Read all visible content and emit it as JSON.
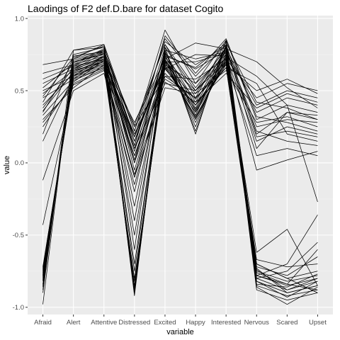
{
  "chart_data": {
    "type": "line",
    "title": "Laodings of F2 def.D.bare for dataset Cogito",
    "xlabel": "variable",
    "ylabel": "value",
    "categories": [
      "Afraid",
      "Alert",
      "Attentive",
      "Distressed",
      "Excited",
      "Happy",
      "Interested",
      "Nervous",
      "Scared",
      "Upset"
    ],
    "ylim": [
      -1.05,
      1.02
    ],
    "yticks": [
      -1.0,
      -0.5,
      0.0,
      0.5,
      1.0
    ],
    "ytick_labels": [
      "-1.0",
      "-0.5",
      "0.0",
      "0.5",
      "1.0"
    ],
    "grid": true,
    "legend": "none",
    "colors": {
      "panel": "#ebebeb",
      "grid_major": "#ffffff",
      "line": "#000000",
      "tick_text": "#4d4d4d"
    },
    "series": [
      {
        "values": [
          -0.78,
          0.62,
          0.7,
          -0.85,
          0.7,
          0.3,
          0.72,
          -0.8,
          -0.88,
          -0.82
        ]
      },
      {
        "values": [
          -0.8,
          0.65,
          0.72,
          -0.88,
          0.72,
          0.28,
          0.75,
          -0.82,
          -0.9,
          -0.85
        ]
      },
      {
        "values": [
          -0.75,
          0.6,
          0.68,
          -0.82,
          0.68,
          0.32,
          0.7,
          -0.78,
          -0.85,
          -0.8
        ]
      },
      {
        "values": [
          -0.85,
          0.7,
          0.75,
          -0.9,
          0.75,
          0.25,
          0.8,
          -0.85,
          -0.92,
          -0.88
        ]
      },
      {
        "values": [
          -0.72,
          0.58,
          0.66,
          -0.8,
          0.66,
          0.35,
          0.68,
          -0.75,
          -0.82,
          -0.78
        ]
      },
      {
        "values": [
          -0.9,
          0.72,
          0.78,
          -0.86,
          0.78,
          0.22,
          0.82,
          -0.88,
          -0.95,
          -0.9
        ]
      },
      {
        "values": [
          -0.98,
          0.75,
          0.8,
          -0.92,
          0.8,
          0.2,
          0.85,
          -0.86,
          -0.98,
          -0.86
        ]
      },
      {
        "values": [
          -0.82,
          0.68,
          0.74,
          -0.75,
          0.74,
          0.4,
          0.78,
          -0.7,
          -0.8,
          -0.75
        ]
      },
      {
        "values": [
          -0.76,
          0.63,
          0.71,
          -0.7,
          0.71,
          0.38,
          0.74,
          -0.72,
          -0.78,
          -0.65
        ]
      },
      {
        "values": [
          -0.88,
          0.78,
          0.82,
          -0.6,
          0.82,
          0.45,
          0.84,
          -0.76,
          -0.84,
          -0.6
        ]
      },
      {
        "values": [
          -0.79,
          0.66,
          0.73,
          -0.5,
          0.73,
          0.48,
          0.77,
          -0.8,
          -0.75,
          -0.55
        ]
      },
      {
        "values": [
          -0.84,
          0.7,
          0.76,
          -0.4,
          0.76,
          0.42,
          0.8,
          -0.78,
          -0.7,
          -0.36
        ]
      },
      {
        "values": [
          -0.77,
          0.64,
          0.7,
          -0.3,
          0.7,
          0.5,
          0.73,
          -0.74,
          -0.88,
          -0.8
        ]
      },
      {
        "values": [
          -0.73,
          0.61,
          0.69,
          -0.2,
          0.69,
          0.44,
          0.71,
          -0.73,
          -0.9,
          -0.85
        ]
      },
      {
        "values": [
          -0.81,
          0.67,
          0.72,
          -0.1,
          0.72,
          0.36,
          0.76,
          -0.82,
          -0.93,
          -0.82
        ]
      },
      {
        "values": [
          -0.86,
          0.71,
          0.77,
          0.0,
          0.77,
          0.33,
          0.81,
          -0.84,
          -0.86,
          -0.77
        ]
      },
      {
        "values": [
          -0.78,
          0.62,
          0.7,
          0.1,
          0.7,
          0.31,
          0.72,
          -0.62,
          -0.46,
          -0.85
        ]
      },
      {
        "values": [
          -0.74,
          0.59,
          0.67,
          0.18,
          0.67,
          0.37,
          0.69,
          -0.7,
          -0.8,
          -0.9
        ]
      },
      {
        "values": [
          -0.43,
          0.55,
          0.65,
          0.05,
          0.65,
          0.4,
          0.7,
          -0.67,
          -0.72,
          -0.7
        ]
      },
      {
        "values": [
          -0.12,
          0.5,
          0.62,
          -0.15,
          0.6,
          0.45,
          0.66,
          -0.78,
          -0.84,
          -0.88
        ]
      },
      {
        "values": [
          0.68,
          0.72,
          0.82,
          0.22,
          0.92,
          0.55,
          0.85,
          0.3,
          0.4,
          0.35
        ]
      },
      {
        "values": [
          0.62,
          0.68,
          0.78,
          0.18,
          0.86,
          0.6,
          0.82,
          0.2,
          0.35,
          0.3
        ]
      },
      {
        "values": [
          0.55,
          0.65,
          0.76,
          0.12,
          0.8,
          0.5,
          0.8,
          0.35,
          0.45,
          0.4
        ]
      },
      {
        "values": [
          0.5,
          0.6,
          0.74,
          0.08,
          0.75,
          0.65,
          0.78,
          0.25,
          0.3,
          0.28
        ]
      },
      {
        "values": [
          0.45,
          0.58,
          0.72,
          0.15,
          0.7,
          0.7,
          0.76,
          0.4,
          0.5,
          0.45
        ]
      },
      {
        "values": [
          0.4,
          0.62,
          0.7,
          0.2,
          0.65,
          0.75,
          0.74,
          0.15,
          0.25,
          0.2
        ]
      },
      {
        "values": [
          0.38,
          0.66,
          0.73,
          0.25,
          0.6,
          0.58,
          0.72,
          0.45,
          0.55,
          0.5
        ]
      },
      {
        "values": [
          0.35,
          0.7,
          0.75,
          0.1,
          0.55,
          0.5,
          0.7,
          0.05,
          0.1,
          0.05
        ]
      },
      {
        "values": [
          0.3,
          0.52,
          0.68,
          0.05,
          0.58,
          0.45,
          0.68,
          0.5,
          0.58,
          0.48
        ]
      },
      {
        "values": [
          0.25,
          0.56,
          0.71,
          0.0,
          0.62,
          0.4,
          0.66,
          0.55,
          0.2,
          0.15
        ]
      },
      {
        "values": [
          0.2,
          0.74,
          0.77,
          -0.05,
          0.66,
          0.35,
          0.73,
          0.6,
          0.4,
          -0.27
        ]
      },
      {
        "values": [
          0.15,
          0.6,
          0.69,
          0.28,
          0.72,
          0.83,
          0.79,
          0.7,
          0.52,
          0.38
        ]
      },
      {
        "values": [
          0.48,
          0.64,
          0.74,
          0.12,
          0.88,
          0.62,
          0.86,
          0.32,
          0.28,
          0.22
        ]
      },
      {
        "values": [
          0.42,
          0.78,
          0.8,
          0.22,
          0.84,
          0.68,
          0.81,
          0.1,
          0.35,
          0.33
        ]
      },
      {
        "values": [
          0.52,
          0.69,
          0.79,
          0.02,
          0.78,
          0.72,
          0.77,
          0.22,
          0.15,
          0.12
        ]
      },
      {
        "values": [
          0.33,
          0.57,
          0.66,
          -0.1,
          0.52,
          0.48,
          0.64,
          0.28,
          0.32,
          0.25
        ]
      },
      {
        "values": [
          0.36,
          0.63,
          0.72,
          0.18,
          0.68,
          0.55,
          0.75,
          -0.05,
          0.02,
          0.08
        ]
      },
      {
        "values": [
          0.28,
          0.54,
          0.64,
          -0.08,
          0.56,
          0.42,
          0.62,
          0.38,
          0.48,
          0.42
        ]
      },
      {
        "values": [
          0.46,
          0.73,
          0.81,
          0.15,
          0.74,
          0.66,
          0.83,
          0.42,
          0.38,
          0.3
        ]
      },
      {
        "values": [
          0.58,
          0.67,
          0.77,
          0.26,
          0.82,
          0.52,
          0.79,
          0.18,
          0.22,
          0.18
        ]
      }
    ]
  }
}
